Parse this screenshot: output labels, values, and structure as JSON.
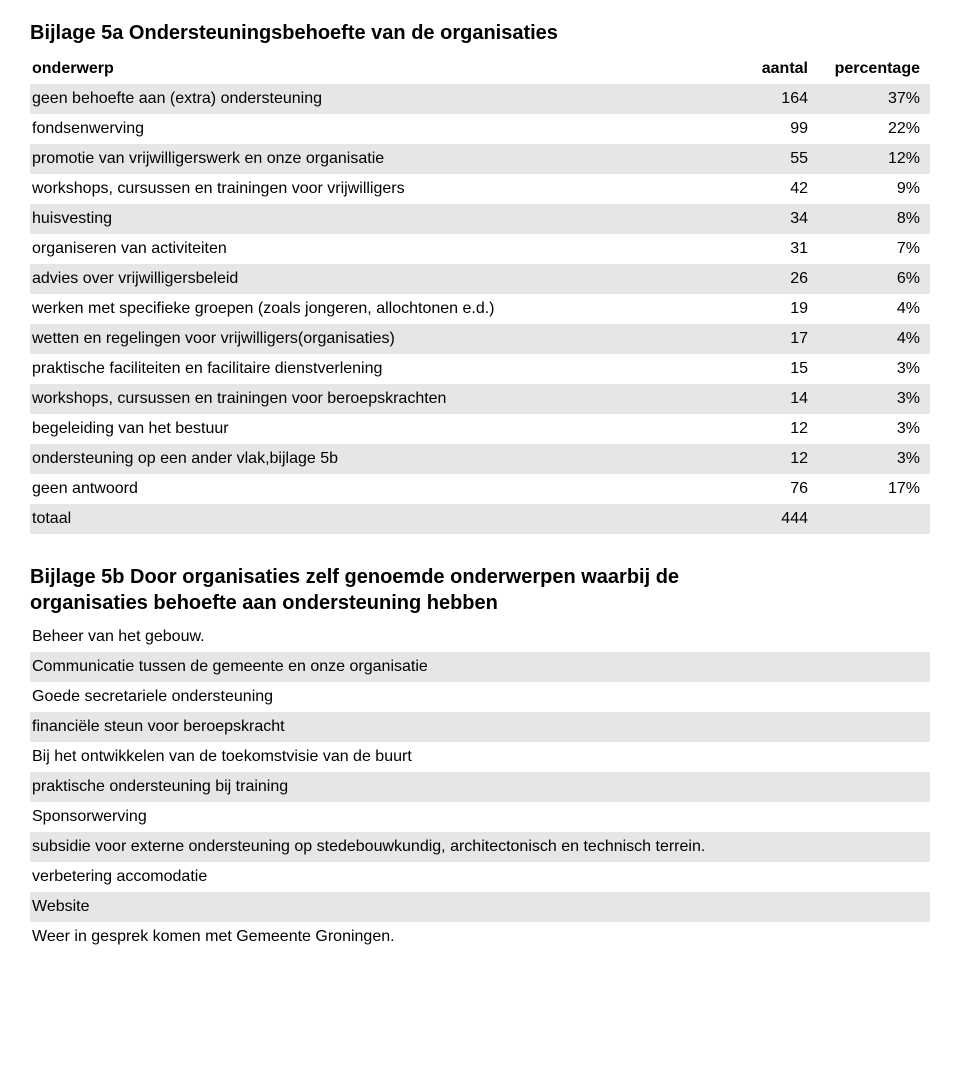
{
  "section5a": {
    "title": "Bijlage 5a Ondersteuningsbehoefte van de organisaties",
    "columns": [
      "onderwerp",
      "aantal",
      "percentage"
    ],
    "rows": [
      {
        "label": "geen behoefte aan (extra) ondersteuning",
        "aantal": "164",
        "pct": "37%"
      },
      {
        "label": "fondsenwerving",
        "aantal": "99",
        "pct": "22%"
      },
      {
        "label": "promotie van vrijwilligerswerk en onze organisatie",
        "aantal": "55",
        "pct": "12%"
      },
      {
        "label": "workshops, cursussen en trainingen voor vrijwilligers",
        "aantal": "42",
        "pct": "9%"
      },
      {
        "label": "huisvesting",
        "aantal": "34",
        "pct": "8%"
      },
      {
        "label": "organiseren van activiteiten",
        "aantal": "31",
        "pct": "7%"
      },
      {
        "label": "advies over vrijwilligersbeleid",
        "aantal": "26",
        "pct": "6%"
      },
      {
        "label": "werken met specifieke groepen (zoals jongeren, allochtonen e.d.)",
        "aantal": "19",
        "pct": "4%"
      },
      {
        "label": "wetten en regelingen voor vrijwilligers(organisaties)",
        "aantal": "17",
        "pct": "4%"
      },
      {
        "label": "praktische faciliteiten en facilitaire dienstverlening",
        "aantal": "15",
        "pct": "3%"
      },
      {
        "label": "workshops, cursussen en trainingen voor beroepskrachten",
        "aantal": "14",
        "pct": "3%"
      },
      {
        "label": "begeleiding van het bestuur",
        "aantal": "12",
        "pct": "3%"
      },
      {
        "label": "ondersteuning op een ander vlak,bijlage 5b",
        "aantal": "12",
        "pct": "3%"
      },
      {
        "label": "geen antwoord",
        "aantal": "76",
        "pct": "17%"
      },
      {
        "label": "totaal",
        "aantal": "444",
        "pct": ""
      }
    ],
    "stripe_color": "#e6e6e6",
    "background_color": "#ffffff",
    "text_color": "#000000",
    "header_fontsize": 20,
    "body_fontsize": 16
  },
  "section5b": {
    "title_line1": "Bijlage 5b Door organisaties zelf genoemde onderwerpen waarbij de",
    "title_line2": "organisaties behoefte aan ondersteuning hebben",
    "items": [
      "Beheer van het gebouw.",
      "Communicatie tussen de gemeente en onze organisatie",
      "Goede secretariele ondersteuning",
      "financiële steun voor beroepskracht",
      "Bij het ontwikkelen van de toekomstvisie van de buurt",
      "praktische ondersteuning bij training",
      "Sponsorwerving",
      "subsidie voor externe ondersteuning op stedebouwkundig, architectonisch en technisch terrein.",
      "verbetering accomodatie",
      "Website",
      "Weer in gesprek komen met Gemeente Groningen."
    ],
    "stripe_color": "#e6e6e6",
    "background_color": "#ffffff",
    "text_color": "#000000",
    "header_fontsize": 20,
    "body_fontsize": 16
  }
}
